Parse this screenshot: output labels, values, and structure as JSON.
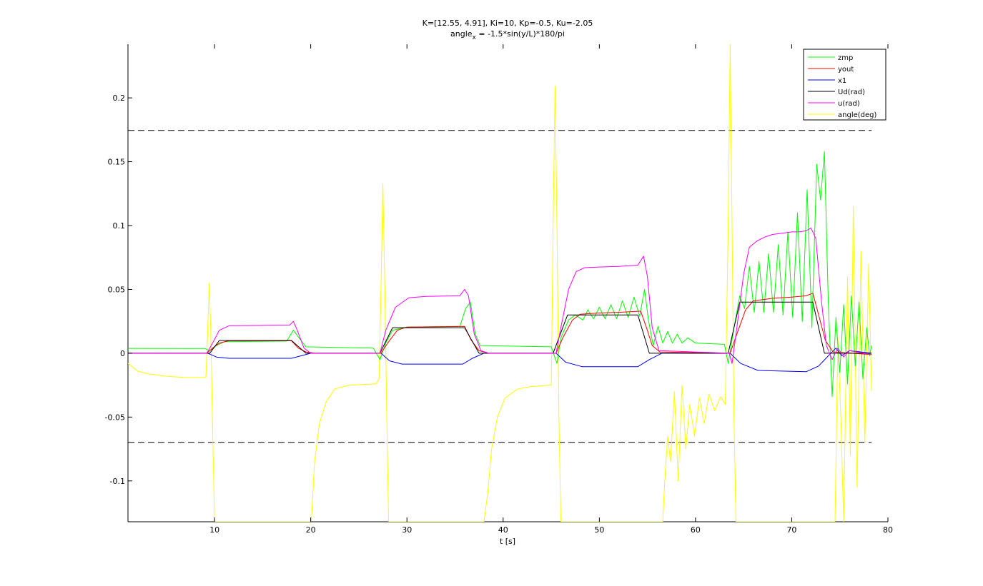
{
  "chart_data": {
    "type": "line",
    "title": "K=[12.55, 4.91], Ki=10, Kp=-0.5, Ku=-2.05",
    "subtitle": {
      "prefix": "angle",
      "subscript": "x",
      "suffix": " = -1.5*sin(y/L)*180/pi"
    },
    "xlabel": "t [s]",
    "ylabel": "",
    "xlim": [
      1,
      80
    ],
    "ylim": [
      -0.132,
      0.242
    ],
    "xticks": [
      10,
      20,
      30,
      40,
      50,
      60,
      70,
      80
    ],
    "yticks": [
      -0.1,
      -0.05,
      0,
      0.05,
      0.1,
      0.15,
      0.2
    ],
    "ytick_labels": [
      "-0.1",
      "-0.05",
      "0",
      "0.05",
      "0.1",
      "0.15",
      "0.2"
    ],
    "grid": false,
    "legend_position": "top-right",
    "reference_lines": [
      {
        "y": 0.1745,
        "style": "dashed",
        "color": "#000000",
        "x_range": [
          1,
          78.3
        ]
      },
      {
        "y": -0.0698,
        "style": "dashed",
        "color": "#000000",
        "x_range": [
          1,
          78.3
        ]
      }
    ],
    "series": [
      {
        "name": "zmp",
        "color": "#00ff00",
        "points": [
          [
            1,
            0.0038
          ],
          [
            9.0,
            0.0037
          ],
          [
            9.5,
            0.002
          ],
          [
            10.2,
            0.006
          ],
          [
            11,
            0.009
          ],
          [
            17.5,
            0.0095
          ],
          [
            18.2,
            0.018
          ],
          [
            18.8,
            0.012
          ],
          [
            19.5,
            0.005
          ],
          [
            26.5,
            0.004
          ],
          [
            27.2,
            -0.005
          ],
          [
            27.8,
            0.008
          ],
          [
            28.5,
            0.018
          ],
          [
            30,
            0.0205
          ],
          [
            35.5,
            0.021
          ],
          [
            36.1,
            0.035
          ],
          [
            36.6,
            0.04
          ],
          [
            37.1,
            0.015
          ],
          [
            37.6,
            0.006
          ],
          [
            45,
            0.005
          ],
          [
            45.6,
            -0.008
          ],
          [
            46,
            0.012
          ],
          [
            46.8,
            0.026
          ],
          [
            47.5,
            0.03
          ],
          [
            48.3,
            0.026
          ],
          [
            48.8,
            0.034
          ],
          [
            49.4,
            0.027
          ],
          [
            50,
            0.036
          ],
          [
            50.6,
            0.027
          ],
          [
            51.2,
            0.038
          ],
          [
            51.8,
            0.027
          ],
          [
            52.4,
            0.041
          ],
          [
            53,
            0.028
          ],
          [
            53.6,
            0.044
          ],
          [
            54.2,
            0.029
          ],
          [
            54.7,
            0.05
          ],
          [
            55.1,
            0.026
          ],
          [
            55.6,
            0.006
          ],
          [
            56.1,
            0.021
          ],
          [
            56.6,
            0.008
          ],
          [
            57.1,
            0.017
          ],
          [
            57.6,
            0.008
          ],
          [
            58.1,
            0.015
          ],
          [
            58.6,
            0.008
          ],
          [
            59.2,
            0.012
          ],
          [
            60,
            0.008
          ],
          [
            63,
            0.007
          ],
          [
            63.4,
            -0.008
          ],
          [
            64,
            0.02
          ],
          [
            64.6,
            0.045
          ],
          [
            65.1,
            0.035
          ],
          [
            65.6,
            0.068
          ],
          [
            66.1,
            0.032
          ],
          [
            66.6,
            0.072
          ],
          [
            67.1,
            0.032
          ],
          [
            67.6,
            0.078
          ],
          [
            68.1,
            0.032
          ],
          [
            68.6,
            0.085
          ],
          [
            69.1,
            0.03
          ],
          [
            69.6,
            0.095
          ],
          [
            70.1,
            0.028
          ],
          [
            70.6,
            0.11
          ],
          [
            71.1,
            0.025
          ],
          [
            71.6,
            0.128
          ],
          [
            72.1,
            0.02
          ],
          [
            72.6,
            0.148
          ],
          [
            73.0,
            0.12
          ],
          [
            73.4,
            0.158
          ],
          [
            73.8,
            0.04
          ],
          [
            74.2,
            -0.034
          ],
          [
            74.6,
            0.028
          ],
          [
            75.0,
            -0.015
          ],
          [
            75.4,
            0.038
          ],
          [
            75.8,
            -0.024
          ],
          [
            76.2,
            0.045
          ],
          [
            76.6,
            -0.01
          ],
          [
            77.0,
            0.04
          ],
          [
            77.4,
            -0.02
          ],
          [
            77.8,
            0.02
          ],
          [
            78.1,
            -0.002
          ],
          [
            78.3,
            0.006
          ]
        ]
      },
      {
        "name": "yout",
        "color": "#ff0000",
        "points": [
          [
            1,
            0
          ],
          [
            9.2,
            0
          ],
          [
            9.8,
            0.004
          ],
          [
            10.5,
            0.008
          ],
          [
            11.5,
            0.0098
          ],
          [
            18,
            0.0098
          ],
          [
            18.7,
            0.004
          ],
          [
            19.5,
            0.001
          ],
          [
            20.5,
            0
          ],
          [
            27.3,
            0
          ],
          [
            28,
            0.008
          ],
          [
            29,
            0.018
          ],
          [
            30,
            0.0205
          ],
          [
            36,
            0.021
          ],
          [
            36.7,
            0.01
          ],
          [
            37.5,
            0.002
          ],
          [
            38.5,
            0
          ],
          [
            45.5,
            0
          ],
          [
            46.2,
            0.012
          ],
          [
            47.2,
            0.026
          ],
          [
            48,
            0.0305
          ],
          [
            50,
            0.0315
          ],
          [
            52,
            0.032
          ],
          [
            54.3,
            0.033
          ],
          [
            54.9,
            0.02
          ],
          [
            55.5,
            0.006
          ],
          [
            56.3,
            0.001
          ],
          [
            63.6,
            0
          ],
          [
            64.3,
            0.015
          ],
          [
            65.2,
            0.034
          ],
          [
            66,
            0.041
          ],
          [
            68,
            0.043
          ],
          [
            70,
            0.044
          ],
          [
            71.5,
            0.045
          ],
          [
            72.2,
            0.047
          ],
          [
            72.8,
            0.03
          ],
          [
            73.5,
            0.01
          ],
          [
            74.3,
            0.001
          ],
          [
            78.3,
            -0.001
          ]
        ]
      },
      {
        "name": "x1",
        "color": "#0000ff",
        "points": [
          [
            1,
            0
          ],
          [
            9.3,
            0
          ],
          [
            10.2,
            -0.003
          ],
          [
            11.5,
            -0.004
          ],
          [
            18,
            -0.004
          ],
          [
            19,
            -0.002
          ],
          [
            20,
            0
          ],
          [
            27.3,
            0
          ],
          [
            28.2,
            -0.006
          ],
          [
            29.5,
            -0.0085
          ],
          [
            35.8,
            -0.0085
          ],
          [
            36.8,
            -0.004
          ],
          [
            38,
            0
          ],
          [
            45.5,
            0
          ],
          [
            46.5,
            -0.007
          ],
          [
            48.2,
            -0.0105
          ],
          [
            54,
            -0.0105
          ],
          [
            55.2,
            -0.005
          ],
          [
            56.5,
            0
          ],
          [
            63.6,
            0
          ],
          [
            64.7,
            -0.008
          ],
          [
            66.5,
            -0.0135
          ],
          [
            71.5,
            -0.0145
          ],
          [
            72.8,
            -0.01
          ],
          [
            73.8,
            -0.002
          ],
          [
            74.6,
            0.004
          ],
          [
            75.2,
            -0.002
          ],
          [
            76,
            0.002
          ],
          [
            78.3,
            0
          ]
        ]
      },
      {
        "name": "Ud(rad)",
        "color": "#000000",
        "points": [
          [
            1,
            0
          ],
          [
            9.5,
            0
          ],
          [
            10.5,
            0.01
          ],
          [
            18,
            0.01
          ],
          [
            19.5,
            0
          ],
          [
            27.2,
            0
          ],
          [
            28.5,
            0.02
          ],
          [
            36,
            0.02
          ],
          [
            37.5,
            0
          ],
          [
            45.2,
            0
          ],
          [
            46.7,
            0.03
          ],
          [
            54,
            0.03
          ],
          [
            55.2,
            0
          ],
          [
            63.4,
            0
          ],
          [
            64.6,
            0.04
          ],
          [
            72.2,
            0.04
          ],
          [
            73.4,
            0
          ],
          [
            78.3,
            0
          ]
        ]
      },
      {
        "name": "u(rad)",
        "color": "#ff00ff",
        "points": [
          [
            1,
            0
          ],
          [
            9.2,
            0
          ],
          [
            9.8,
            0.008
          ],
          [
            10.5,
            0.018
          ],
          [
            11.5,
            0.0215
          ],
          [
            17.8,
            0.022
          ],
          [
            18.2,
            0.025
          ],
          [
            18.6,
            0.018
          ],
          [
            19.3,
            0.004
          ],
          [
            20,
            0
          ],
          [
            27.2,
            0
          ],
          [
            27.8,
            0.018
          ],
          [
            28.8,
            0.036
          ],
          [
            30.2,
            0.0435
          ],
          [
            32,
            0.0445
          ],
          [
            35.5,
            0.045
          ],
          [
            36,
            0.05
          ],
          [
            36.4,
            0.045
          ],
          [
            37,
            0.015
          ],
          [
            37.7,
            0.002
          ],
          [
            38.5,
            0
          ],
          [
            45.5,
            0
          ],
          [
            46,
            0.02
          ],
          [
            46.8,
            0.05
          ],
          [
            47.6,
            0.064
          ],
          [
            48.5,
            0.067
          ],
          [
            50,
            0.0675
          ],
          [
            52,
            0.068
          ],
          [
            54,
            0.069
          ],
          [
            54.6,
            0.076
          ],
          [
            55,
            0.06
          ],
          [
            55.5,
            0.02
          ],
          [
            56.2,
            0.002
          ],
          [
            63.5,
            0
          ],
          [
            63.8,
            -0.008
          ],
          [
            64.3,
            0.02
          ],
          [
            65,
            0.062
          ],
          [
            65.6,
            0.083
          ],
          [
            66.4,
            0.088
          ],
          [
            67.2,
            0.091
          ],
          [
            68,
            0.093
          ],
          [
            69,
            0.094
          ],
          [
            70,
            0.095
          ],
          [
            70.8,
            0.095
          ],
          [
            71.5,
            0.096
          ],
          [
            72,
            0.098
          ],
          [
            72.5,
            0.09
          ],
          [
            73.1,
            0.04
          ],
          [
            73.6,
            0.006
          ],
          [
            74.2,
            -0.005
          ],
          [
            74.8,
            0.004
          ],
          [
            75.4,
            -0.003
          ],
          [
            76,
            0.002
          ],
          [
            78.3,
            -0.001
          ]
        ]
      },
      {
        "name": "angle(deg)",
        "color": "#ffff00",
        "points": [
          [
            1,
            -0.008
          ],
          [
            2,
            -0.014
          ],
          [
            3,
            -0.016
          ],
          [
            5,
            -0.018
          ],
          [
            7,
            -0.019
          ],
          [
            9.1,
            -0.019
          ],
          [
            9.3,
            0.02
          ],
          [
            9.45,
            0.055
          ],
          [
            9.6,
            0.02
          ],
          [
            9.8,
            -0.06
          ],
          [
            10.0,
            -0.132
          ],
          [
            20.0,
            -0.132
          ],
          [
            20.1,
            -0.127
          ],
          [
            20.4,
            -0.085
          ],
          [
            20.9,
            -0.055
          ],
          [
            21.6,
            -0.038
          ],
          [
            22.5,
            -0.028
          ],
          [
            24,
            -0.025
          ],
          [
            26.8,
            -0.024
          ],
          [
            27.1,
            -0.02
          ],
          [
            27.3,
            0.05
          ],
          [
            27.5,
            0.133
          ],
          [
            27.7,
            0.05
          ],
          [
            27.9,
            -0.05
          ],
          [
            28.1,
            -0.132
          ],
          [
            38.0,
            -0.132
          ],
          [
            38.4,
            -0.11
          ],
          [
            38.8,
            -0.075
          ],
          [
            39.4,
            -0.05
          ],
          [
            40.2,
            -0.035
          ],
          [
            41.5,
            -0.028
          ],
          [
            43,
            -0.026
          ],
          [
            45.0,
            -0.025
          ],
          [
            45.2,
            0.1
          ],
          [
            45.4,
            0.209
          ],
          [
            45.6,
            0.1
          ],
          [
            45.8,
            -0.05
          ],
          [
            46.0,
            -0.132
          ],
          [
            56.6,
            -0.132
          ],
          [
            56.8,
            -0.1
          ],
          [
            57.1,
            -0.065
          ],
          [
            57.4,
            -0.085
          ],
          [
            57.8,
            -0.03
          ],
          [
            58.2,
            -0.1
          ],
          [
            58.6,
            -0.025
          ],
          [
            59.0,
            -0.075
          ],
          [
            59.4,
            -0.04
          ],
          [
            59.9,
            -0.065
          ],
          [
            60.4,
            -0.035
          ],
          [
            60.9,
            -0.055
          ],
          [
            61.4,
            -0.032
          ],
          [
            62,
            -0.045
          ],
          [
            62.6,
            -0.034
          ],
          [
            63.1,
            -0.04
          ],
          [
            63.4,
            0.1
          ],
          [
            63.6,
            0.242
          ],
          [
            63.8,
            0.1
          ],
          [
            64.0,
            -0.05
          ],
          [
            64.2,
            -0.132
          ],
          [
            74.5,
            -0.132
          ],
          [
            74.8,
            0.012
          ],
          [
            75.1,
            -0.05
          ],
          [
            75.4,
            -0.132
          ],
          [
            75.8,
            0.06
          ],
          [
            76.1,
            -0.08
          ],
          [
            76.4,
            0.115
          ],
          [
            76.8,
            -0.105
          ],
          [
            77.2,
            0.08
          ],
          [
            77.6,
            -0.07
          ],
          [
            78.0,
            0.07
          ],
          [
            78.3,
            -0.03
          ]
        ]
      }
    ]
  }
}
